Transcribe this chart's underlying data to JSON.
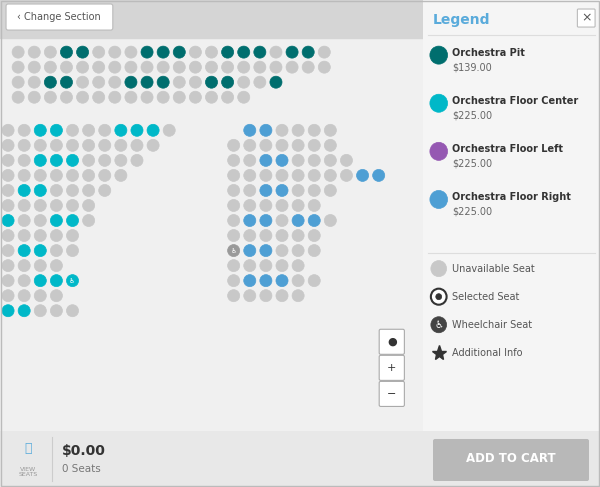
{
  "fig_width": 6.0,
  "fig_height": 4.87,
  "dpi": 100,
  "bg": "#f0f0f0",
  "main_bg": "#ffffff",
  "legend_bg": "#f5f5f5",
  "header_bg": "#d5d5d5",
  "footer_bg": "#e8e8e8",
  "gray": "#c8c8c8",
  "teal_dark": "#006e6e",
  "teal_light": "#00b8c8",
  "purple": "#9558b2",
  "blue": "#4e9fd4",
  "legend_colors": [
    "#006e6e",
    "#00b8c8",
    "#9558b2",
    "#4e9fd4"
  ],
  "legend_labels": [
    "Orchestra Pit",
    "Orchestra Floor Center",
    "Orchestra Floor Left",
    "Orchestra Floor Right"
  ],
  "legend_prices": [
    "$139.00",
    "$225.00",
    "$225.00",
    "$225.00"
  ]
}
